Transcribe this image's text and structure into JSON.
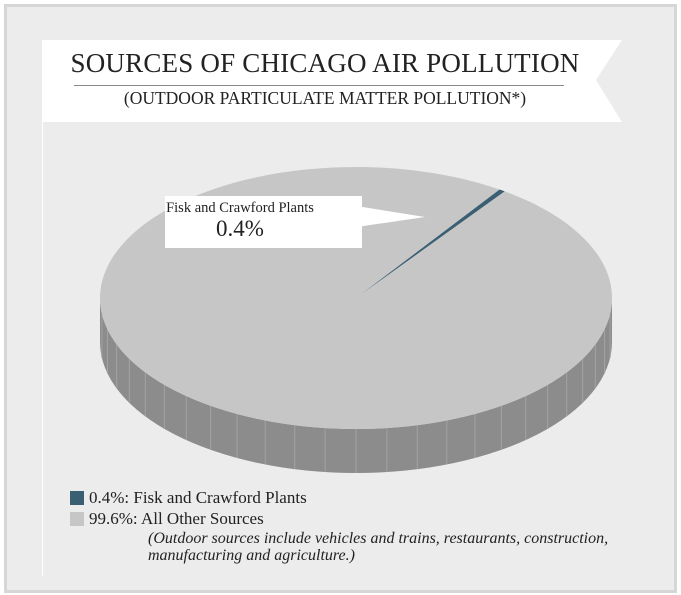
{
  "chart_data": {
    "type": "pie",
    "style": "3d",
    "title": "SOURCES OF CHICAGO AIR POLLUTION",
    "subtitle": "(OUTDOOR PARTICULATE MATTER POLLUTION*)",
    "slices": [
      {
        "label": "Fisk and Crawford Plants",
        "value": 0.4,
        "color": "#3b5f72"
      },
      {
        "label": "All Other Sources",
        "value": 99.6,
        "color": "#c6c6c6"
      }
    ],
    "callout": {
      "label": "Fisk and Crawford Plants",
      "value": "0.4%"
    },
    "legend": [
      {
        "text": "0.4%: Fisk and Crawford Plants",
        "color": "#3b5f72"
      },
      {
        "text": "99.6%: All Other Sources",
        "color": "#c6c6c6"
      }
    ],
    "legend_note": "(Outdoor sources include vehicles and trains, restaurants, construction, manufacturing and agriculture.)"
  },
  "colors": {
    "background": "#ececec",
    "frame": "#d6d6d6",
    "pie_side": "#8c8c8c",
    "pie_top": "#c6c6c6",
    "highlight_slice": "#3b5f72"
  }
}
